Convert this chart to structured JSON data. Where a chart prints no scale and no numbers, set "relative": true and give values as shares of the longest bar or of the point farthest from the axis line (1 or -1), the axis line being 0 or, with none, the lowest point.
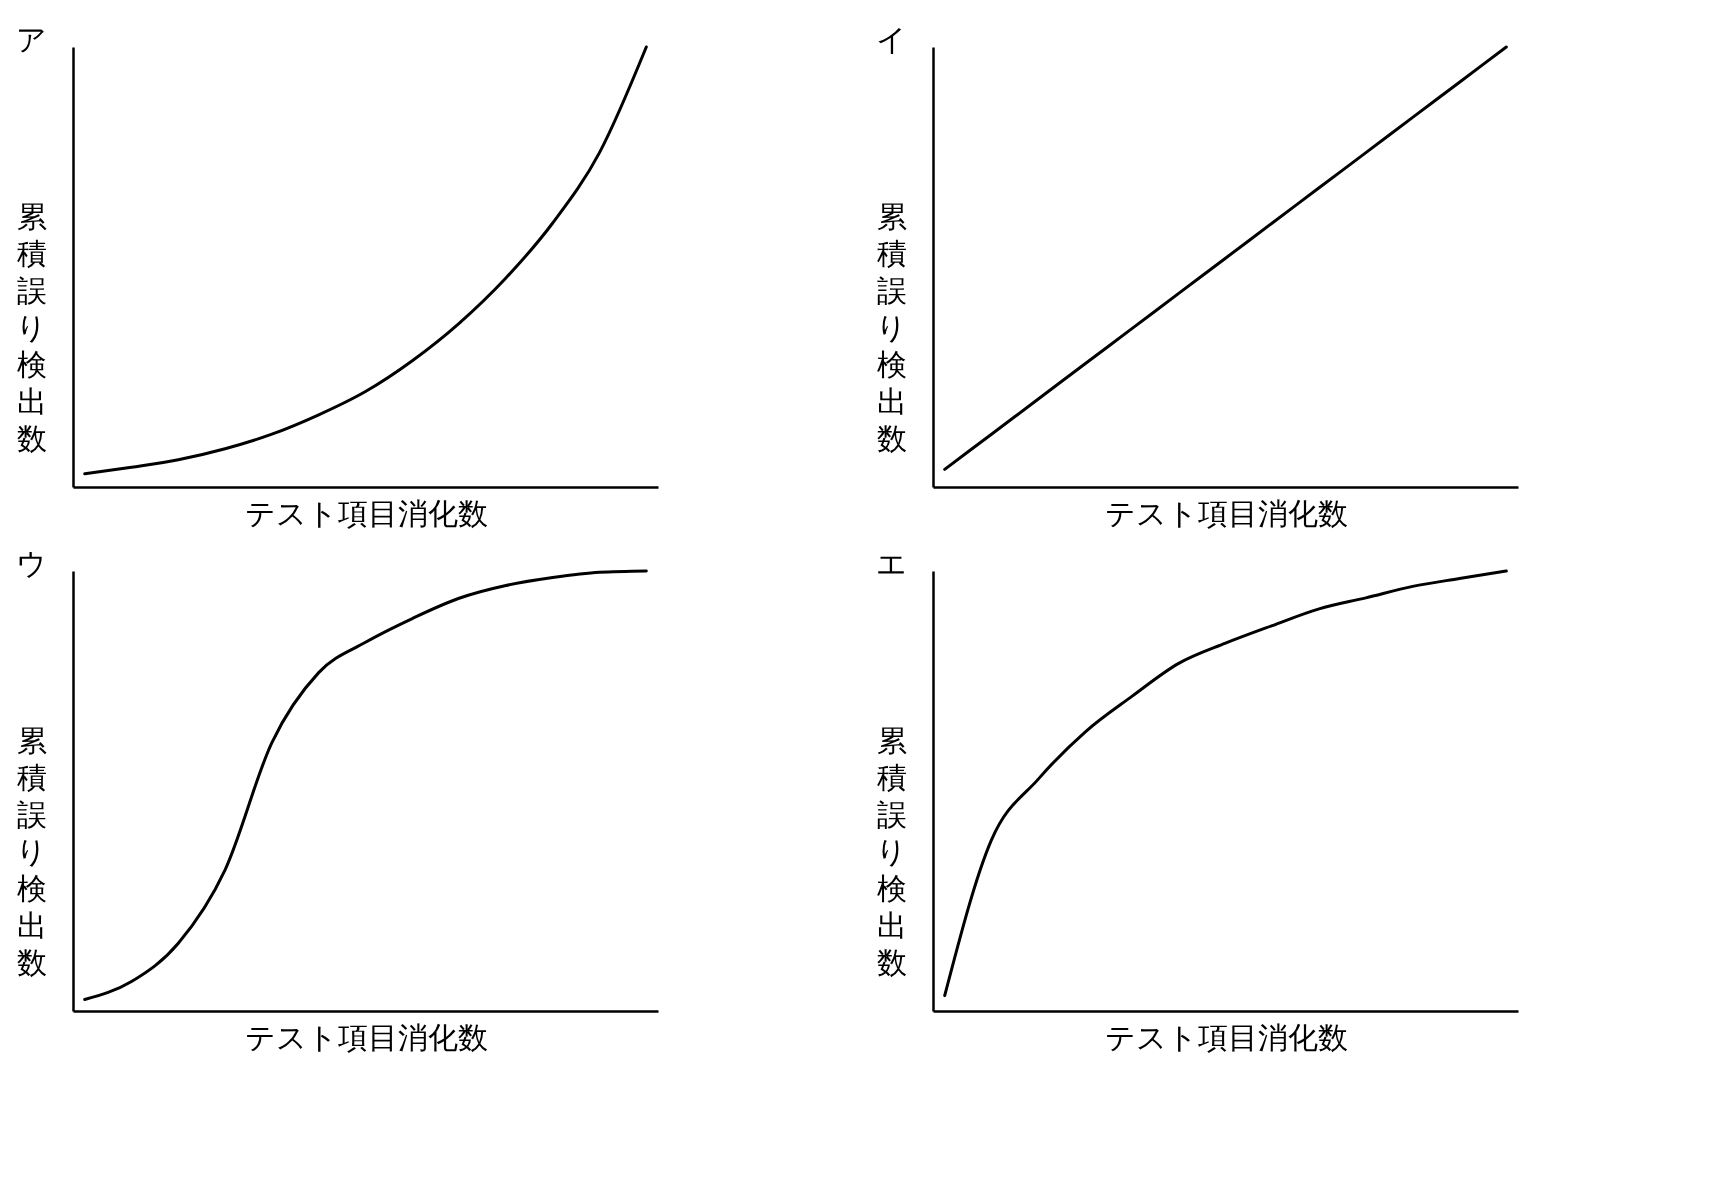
{
  "chart_data": [
    {
      "type": "line",
      "title": "ア",
      "xlabel": "テスト項目消化数",
      "ylabel": "累積誤り検出数",
      "relative": true,
      "tick_labels": false,
      "legend": false,
      "grid": false,
      "marker": "none",
      "line_style": "solid",
      "categories": [
        null,
        null,
        null,
        null,
        null,
        null,
        null,
        null,
        null,
        null,
        null,
        null,
        null
      ],
      "series": [
        {
          "color": "#000000",
          "values": [
            0.03,
            0.045,
            0.062,
            0.087,
            0.12,
            0.164,
            0.217,
            0.287,
            0.372,
            0.475,
            0.6,
            0.76,
            1.0
          ]
        }
      ]
    },
    {
      "type": "line",
      "title": "イ",
      "xlabel": "テスト項目消化数",
      "ylabel": "累積誤り検出数",
      "relative": true,
      "tick_labels": false,
      "legend": false,
      "grid": false,
      "marker": "none",
      "line_style": "solid",
      "categories": [
        null,
        null,
        null,
        null,
        null,
        null,
        null,
        null,
        null,
        null,
        null,
        null,
        null
      ],
      "series": [
        {
          "color": "#000000",
          "values": [
            0.04,
            0.12,
            0.2,
            0.28,
            0.36,
            0.44,
            0.52,
            0.6,
            0.68,
            0.76,
            0.84,
            0.92,
            1.0
          ]
        }
      ]
    },
    {
      "type": "line",
      "title": "ウ",
      "xlabel": "テスト項目消化数",
      "ylabel": "累積誤り検出数",
      "relative": true,
      "tick_labels": false,
      "legend": false,
      "grid": false,
      "marker": "none",
      "line_style": "solid",
      "categories": [
        null,
        null,
        null,
        null,
        null,
        null,
        null,
        null,
        null,
        null,
        null,
        null,
        null
      ],
      "series": [
        {
          "color": "#000000",
          "values": [
            0.026,
            0.067,
            0.154,
            0.321,
            0.61,
            0.769,
            0.838,
            0.892,
            0.938,
            0.967,
            0.985,
            0.997,
            1.0
          ]
        }
      ]
    },
    {
      "type": "line",
      "title": "エ",
      "xlabel": "テスト項目消化数",
      "ylabel": "累積誤り検出数",
      "relative": true,
      "tick_labels": false,
      "legend": false,
      "grid": false,
      "marker": "none",
      "line_style": "solid",
      "categories": [
        null,
        null,
        null,
        null,
        null,
        null,
        null,
        null,
        null,
        null,
        null,
        null,
        null
      ],
      "series": [
        {
          "color": "#000000",
          "values": [
            0.035,
            0.389,
            0.527,
            0.634,
            0.715,
            0.79,
            0.836,
            0.876,
            0.914,
            0.939,
            0.965,
            0.983,
            1.0
          ]
        }
      ]
    }
  ]
}
